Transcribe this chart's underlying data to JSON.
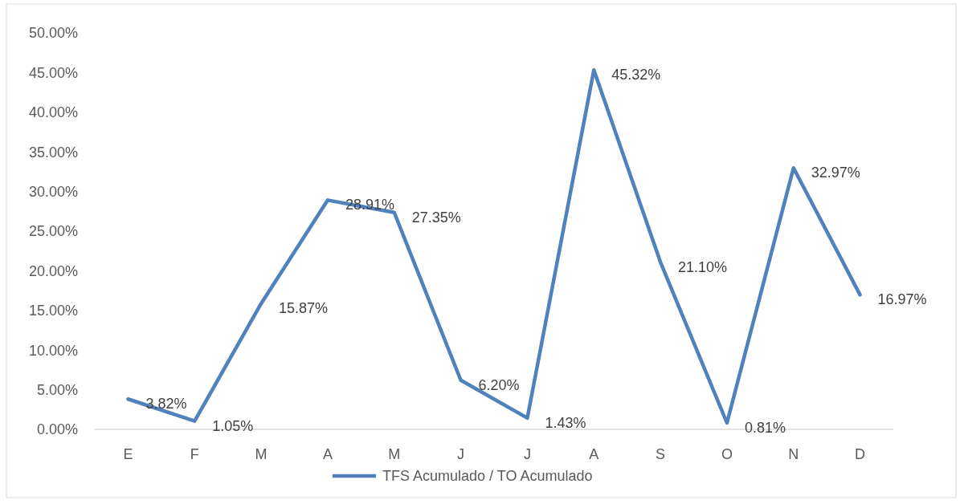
{
  "chart_data": {
    "type": "line",
    "categories": [
      "E",
      "F",
      "M",
      "A",
      "M",
      "J",
      "J",
      "A",
      "S",
      "O",
      "N",
      "D"
    ],
    "series": [
      {
        "name": "TFS Acumulado / TO Acumulado",
        "color": "#4f81bd",
        "values": [
          3.82,
          1.05,
          15.87,
          28.91,
          27.35,
          6.2,
          1.43,
          45.32,
          21.1,
          0.81,
          32.97,
          16.97
        ],
        "value_labels": [
          "3.82%",
          "1.05%",
          "15.87%",
          "28.91%",
          "27.35%",
          "6.20%",
          "1.43%",
          "45.32%",
          "21.10%",
          "0.81%",
          "32.97%",
          "16.97%"
        ]
      }
    ],
    "ylim": [
      0,
      50
    ],
    "yticks": [
      {
        "value": 0,
        "label": "0.00%"
      },
      {
        "value": 5,
        "label": "5.00%"
      },
      {
        "value": 10,
        "label": "10.00%"
      },
      {
        "value": 15,
        "label": "15.00%"
      },
      {
        "value": 20,
        "label": "20.00%"
      },
      {
        "value": 25,
        "label": "25.00%"
      },
      {
        "value": 30,
        "label": "30.00%"
      },
      {
        "value": 35,
        "label": "35.00%"
      },
      {
        "value": 40,
        "label": "40.00%"
      },
      {
        "value": 45,
        "label": "45.00%"
      },
      {
        "value": 50,
        "label": "50.00%"
      }
    ],
    "legend": "bottom",
    "marker": "none",
    "line_style": "solid"
  }
}
